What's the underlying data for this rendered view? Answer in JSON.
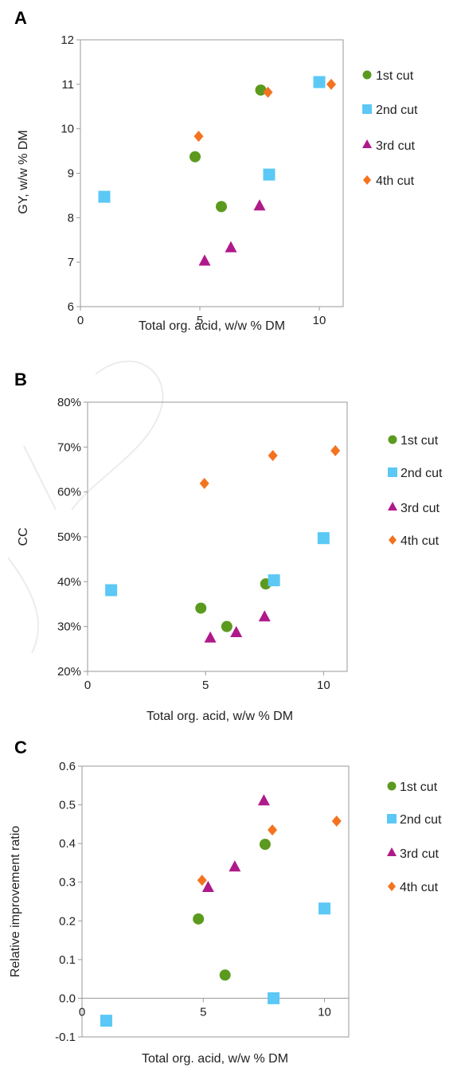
{
  "chart_data": [
    {
      "type": "scatter",
      "panel_label": "A",
      "xlabel": "Total org. acid, w/w % DM",
      "ylabel": "GY, w/w % DM",
      "xlim": [
        0,
        11
      ],
      "ylim": [
        6,
        12
      ],
      "xticks": [
        0,
        5,
        10
      ],
      "yticks": [
        6,
        7,
        8,
        9,
        10,
        11,
        12
      ],
      "ytick_format": "int",
      "zero_line": false,
      "legend_position": "right",
      "series": [
        {
          "name": "1st cut",
          "marker": "circle",
          "color": "#5b9a1e",
          "points": [
            [
              4.8,
              9.37
            ],
            [
              5.9,
              8.25
            ],
            [
              7.55,
              10.87
            ]
          ]
        },
        {
          "name": "2nd cut",
          "marker": "square",
          "color": "#5bc8f5",
          "points": [
            [
              1.0,
              8.47
            ],
            [
              7.9,
              8.97
            ],
            [
              10.0,
              11.05
            ]
          ]
        },
        {
          "name": "3rd cut",
          "marker": "triangle",
          "color": "#b0198a",
          "points": [
            [
              5.2,
              7.03
            ],
            [
              6.3,
              7.33
            ],
            [
              7.5,
              8.27
            ]
          ]
        },
        {
          "name": "4th cut",
          "marker": "diamond",
          "color": "#f4731f",
          "points": [
            [
              4.95,
              9.83
            ],
            [
              7.85,
              10.82
            ],
            [
              10.5,
              11.0
            ]
          ]
        }
      ]
    },
    {
      "type": "scatter",
      "panel_label": "B",
      "xlabel": "Total org. acid, w/w % DM",
      "ylabel": "CC",
      "xlim": [
        0,
        11
      ],
      "ylim": [
        0.2,
        0.8
      ],
      "xticks": [
        0,
        5,
        10
      ],
      "yticks": [
        0.2,
        0.3,
        0.4,
        0.5,
        0.6,
        0.7,
        0.8
      ],
      "ytick_format": "percent",
      "zero_line": false,
      "legend_position": "right",
      "series": [
        {
          "name": "1st cut",
          "marker": "circle",
          "color": "#5b9a1e",
          "points": [
            [
              4.8,
              0.341
            ],
            [
              5.9,
              0.3
            ],
            [
              7.55,
              0.395
            ]
          ]
        },
        {
          "name": "2nd cut",
          "marker": "square",
          "color": "#5bc8f5",
          "points": [
            [
              1.0,
              0.381
            ],
            [
              7.9,
              0.403
            ],
            [
              10.0,
              0.497
            ]
          ]
        },
        {
          "name": "3rd cut",
          "marker": "triangle",
          "color": "#b0198a",
          "points": [
            [
              5.2,
              0.275
            ],
            [
              6.3,
              0.287
            ],
            [
              7.5,
              0.322
            ]
          ]
        },
        {
          "name": "4th cut",
          "marker": "diamond",
          "color": "#f4731f",
          "points": [
            [
              4.95,
              0.619
            ],
            [
              7.85,
              0.681
            ],
            [
              10.5,
              0.692
            ]
          ]
        }
      ]
    },
    {
      "type": "scatter",
      "panel_label": "C",
      "xlabel": "Total org. acid, w/w % DM",
      "ylabel": "Relative improvement ratio",
      "xlim": [
        0,
        11
      ],
      "ylim": [
        -0.1,
        0.6
      ],
      "xticks": [
        0,
        5,
        10
      ],
      "yticks": [
        -0.1,
        0.0,
        0.1,
        0.2,
        0.3,
        0.4,
        0.5,
        0.6
      ],
      "ytick_format": "fixed1",
      "zero_line": true,
      "legend_position": "right",
      "series": [
        {
          "name": "1st cut",
          "marker": "circle",
          "color": "#5b9a1e",
          "points": [
            [
              4.8,
              0.205
            ],
            [
              5.9,
              0.06
            ],
            [
              7.55,
              0.398
            ]
          ]
        },
        {
          "name": "2nd cut",
          "marker": "square",
          "color": "#5bc8f5",
          "points": [
            [
              1.0,
              -0.058
            ],
            [
              7.9,
              0.0
            ],
            [
              10.0,
              0.232
            ]
          ]
        },
        {
          "name": "3rd cut",
          "marker": "triangle",
          "color": "#b0198a",
          "points": [
            [
              5.2,
              0.287
            ],
            [
              6.3,
              0.34
            ],
            [
              7.5,
              0.511
            ]
          ]
        },
        {
          "name": "4th cut",
          "marker": "diamond",
          "color": "#f4731f",
          "points": [
            [
              4.95,
              0.305
            ],
            [
              7.85,
              0.435
            ],
            [
              10.5,
              0.458
            ]
          ]
        }
      ]
    }
  ]
}
